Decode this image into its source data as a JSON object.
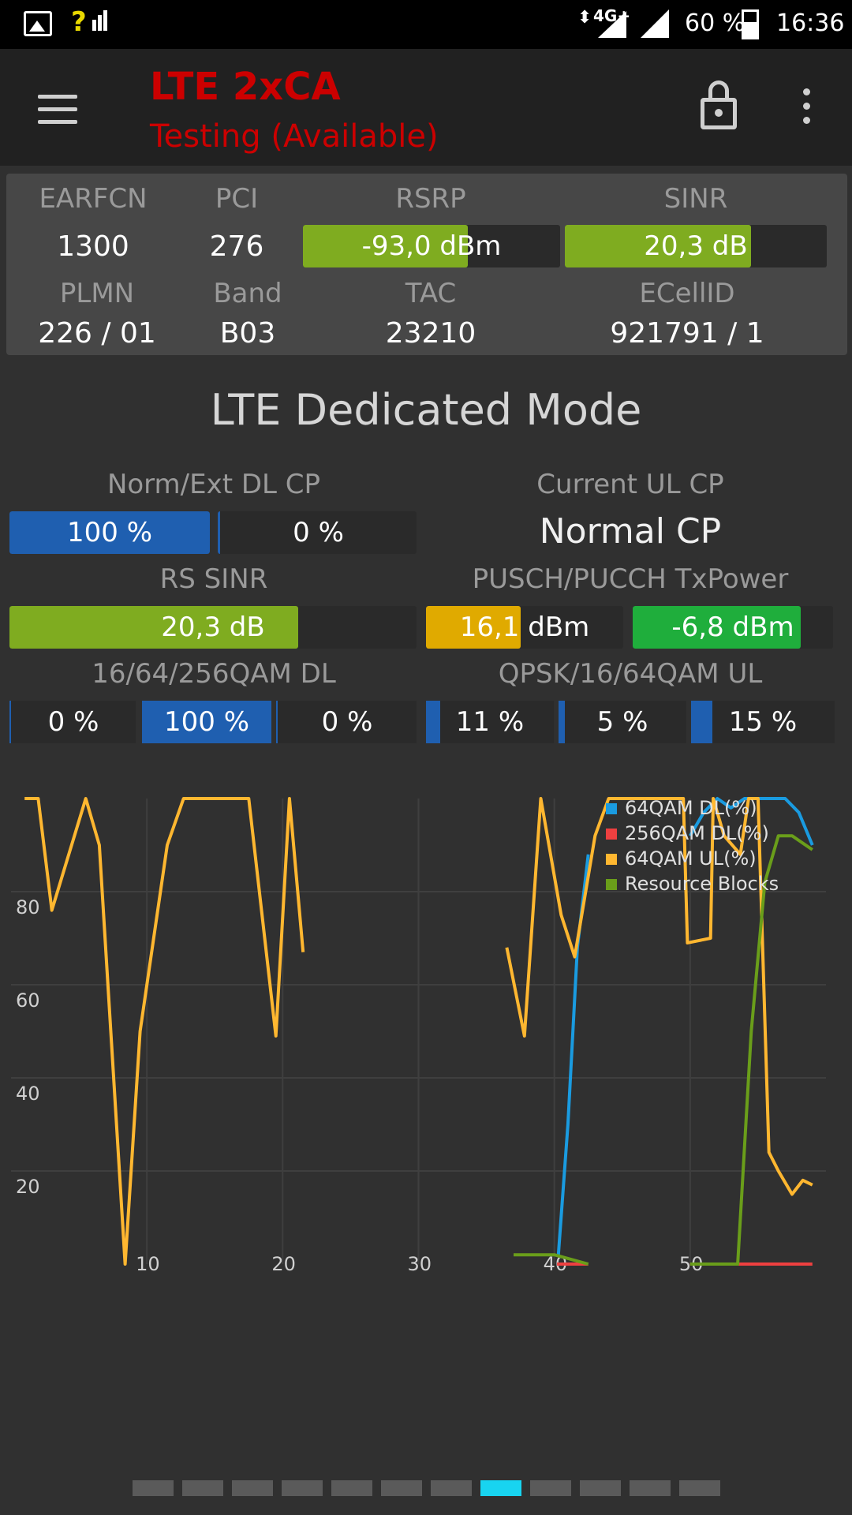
{
  "status_bar": {
    "signal_text": "?",
    "network_label": "4G+",
    "battery": "60 %",
    "time": "16:36"
  },
  "app_bar": {
    "title": "LTE 2xCA",
    "subtitle": "Testing (Available)",
    "title_color": "#cc0000"
  },
  "cell_info": {
    "earfcn": {
      "label": "EARFCN",
      "value": "1300"
    },
    "pci": {
      "label": "PCI",
      "value": "276"
    },
    "rsrp": {
      "label": "RSRP",
      "value": "-93,0 dBm",
      "fill_fraction": 0.64,
      "color": "#7fac20"
    },
    "sinr": {
      "label": "SINR",
      "value": "20,3 dB",
      "fill_fraction": 0.71,
      "color": "#7fac20"
    },
    "plmn": {
      "label": "PLMN",
      "value": "226 / 01"
    },
    "band": {
      "label": "Band",
      "value": "B03"
    },
    "tac": {
      "label": "TAC",
      "value": "23210"
    },
    "ecellid": {
      "label": "ECellID",
      "value": "921791 / 1"
    }
  },
  "mode_title": "LTE Dedicated Mode",
  "norm_ext": {
    "label": "Norm/Ext DL CP",
    "normal_value": "100 %",
    "normal_fraction": 1.0,
    "extended_value": "0 %",
    "extended_fraction": 0.0,
    "color": "#1f5fb0"
  },
  "ul_cp": {
    "label": "Current UL CP",
    "value": "Normal CP"
  },
  "rs_sinr": {
    "label": "RS SINR",
    "value": "20,3 dB",
    "fill_fraction": 0.71,
    "color": "#7fac20"
  },
  "txpower": {
    "label": "PUSCH/PUCCH TxPower",
    "pusch_value": "16,1",
    "pusch_unit": "dBm",
    "pusch_fraction": 0.48,
    "pusch_color": "#e0aa00",
    "pucch_value": "-6,8 dBm",
    "pucch_fraction": 0.84,
    "pucch_color": "#1fae3c"
  },
  "dl_qam": {
    "label": "16/64/256QAM DL",
    "cells": [
      {
        "value": "0 %",
        "fraction": 0.0
      },
      {
        "value": "100 %",
        "fraction": 1.0
      },
      {
        "value": "0 %",
        "fraction": 0.0
      }
    ]
  },
  "ul_qam": {
    "label": "QPSK/16/64QAM UL",
    "cells": [
      {
        "value": "11 %",
        "fraction": 0.11
      },
      {
        "value": "5 %",
        "fraction": 0.05
      },
      {
        "value": "15 %",
        "fraction": 0.15
      }
    ]
  },
  "chart_data": {
    "type": "line",
    "xlim": [
      0,
      60
    ],
    "ylim": [
      0,
      100
    ],
    "x_ticks": [
      10,
      20,
      30,
      40,
      50
    ],
    "y_ticks": [
      20,
      40,
      60,
      80
    ],
    "grid": true,
    "legend_position": "top-right",
    "series": [
      {
        "name": "64QAM DL(%)",
        "color": "#1a9be0",
        "segments": [
          [
            [
              40.3,
              2
            ],
            [
              41.0,
              30
            ],
            [
              41.7,
              68
            ],
            [
              42.5,
              88
            ]
          ],
          [
            [
              50,
              92
            ],
            [
              51,
              97
            ],
            [
              52,
              100
            ],
            [
              53,
              98
            ],
            [
              54,
              100
            ],
            [
              55,
              100
            ],
            [
              56,
              100
            ],
            [
              57,
              100
            ],
            [
              58,
              97
            ],
            [
              59,
              90
            ]
          ]
        ]
      },
      {
        "name": "256QAM DL(%)",
        "color": "#ee4040",
        "segments": [
          [
            [
              40.2,
              0
            ],
            [
              42.5,
              0
            ]
          ],
          [
            [
              50,
              0
            ],
            [
              59,
              0
            ]
          ]
        ]
      },
      {
        "name": "64QAM UL(%)",
        "color": "#ffb730",
        "segments": [
          [
            [
              1,
              100
            ],
            [
              2,
              100
            ],
            [
              3,
              76
            ],
            [
              5.5,
              100
            ],
            [
              6.5,
              90
            ],
            [
              8.4,
              0
            ],
            [
              9.5,
              50
            ],
            [
              11.5,
              90
            ],
            [
              12.7,
              100
            ],
            [
              14,
              100
            ],
            [
              15,
              100
            ],
            [
              17.5,
              100
            ],
            [
              19.5,
              49
            ],
            [
              20.5,
              100
            ],
            [
              21.5,
              67
            ]
          ],
          [
            [
              36.5,
              68
            ],
            [
              37.8,
              49
            ],
            [
              39,
              100
            ],
            [
              40.5,
              75
            ],
            [
              41.5,
              66
            ],
            [
              43,
              92
            ],
            [
              44,
              100
            ],
            [
              45,
              100
            ],
            [
              47,
              100
            ],
            [
              49.5,
              100
            ],
            [
              49.8,
              69
            ],
            [
              51.5,
              70
            ],
            [
              51.7,
              100
            ],
            [
              52.5,
              92
            ],
            [
              53.7,
              88
            ],
            [
              54.3,
              100
            ],
            [
              55,
              100
            ],
            [
              55.8,
              24
            ],
            [
              56.5,
              20
            ],
            [
              57.5,
              15
            ],
            [
              58.3,
              18
            ],
            [
              59,
              17
            ]
          ]
        ]
      },
      {
        "name": "Resource Blocks",
        "color": "#6a9e1a",
        "segments": [
          [
            [
              37,
              2
            ],
            [
              40,
              2
            ],
            [
              42.5,
              0
            ]
          ],
          [
            [
              50,
              0
            ],
            [
              53.5,
              0
            ],
            [
              54.5,
              50
            ],
            [
              55.5,
              82
            ],
            [
              56.5,
              92
            ],
            [
              57.5,
              92
            ],
            [
              59,
              89
            ]
          ]
        ]
      }
    ]
  },
  "page_indicator": {
    "count": 12,
    "active_index": 7,
    "active_color": "#18d4f0",
    "inactive_color": "#5a5a5a"
  }
}
